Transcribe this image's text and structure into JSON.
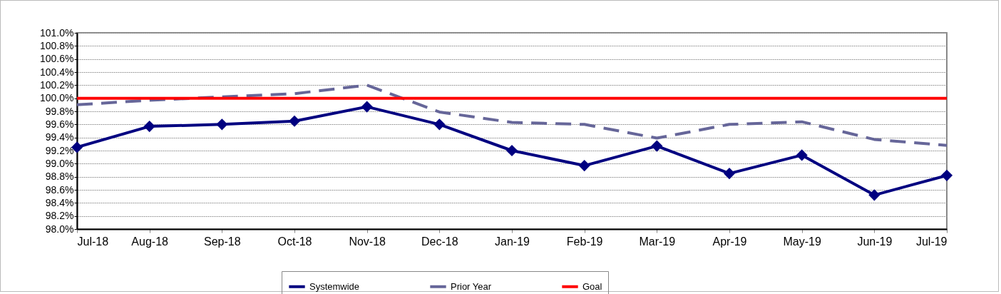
{
  "chart_data": {
    "type": "line",
    "categories": [
      "Jul-18",
      "Aug-18",
      "Sep-18",
      "Oct-18",
      "Nov-18",
      "Dec-18",
      "Jan-19",
      "Feb-19",
      "Mar-19",
      "Apr-19",
      "May-19",
      "Jun-19",
      "Jul-19"
    ],
    "series": [
      {
        "name": "Systemwide",
        "color": "#000080",
        "marker": "diamond",
        "line_style": "solid",
        "values": [
          99.25,
          99.57,
          99.6,
          99.65,
          99.87,
          99.6,
          99.2,
          98.97,
          99.27,
          98.85,
          99.13,
          98.52,
          98.82
        ]
      },
      {
        "name": "Prior Year",
        "color": "#666699",
        "marker": "none",
        "line_style": "dashed",
        "values": [
          99.9,
          99.97,
          100.02,
          100.07,
          100.2,
          99.79,
          99.63,
          99.6,
          99.39,
          99.6,
          99.64,
          99.37,
          99.28
        ]
      },
      {
        "name": "Goal",
        "color": "#ff0000",
        "marker": "none",
        "line_style": "solid",
        "values": [
          100,
          100,
          100,
          100,
          100,
          100,
          100,
          100,
          100,
          100,
          100,
          100,
          100
        ]
      }
    ],
    "ylim": [
      98,
      101
    ],
    "yticks": [
      {
        "value": 98,
        "label": "98.0%"
      },
      {
        "value": 98.2,
        "label": "98.2%"
      },
      {
        "value": 98.4,
        "label": "98.4%"
      },
      {
        "value": 98.6,
        "label": "98.6%"
      },
      {
        "value": 98.8,
        "label": "98.8%"
      },
      {
        "value": 99,
        "label": "99.0%"
      },
      {
        "value": 99.2,
        "label": "99.2%"
      },
      {
        "value": 99.4,
        "label": "99.4%"
      },
      {
        "value": 99.6,
        "label": "99.6%"
      },
      {
        "value": 99.8,
        "label": "99.8%"
      },
      {
        "value": 100,
        "label": "100.0%"
      },
      {
        "value": 100.2,
        "label": "100.2%"
      },
      {
        "value": 100.4,
        "label": "100.4%"
      },
      {
        "value": 100.6,
        "label": "100.6%"
      },
      {
        "value": 100.8,
        "label": "100.8%"
      },
      {
        "value": 101,
        "label": "101.0%"
      }
    ],
    "grid": "y",
    "legend": "bottom"
  }
}
